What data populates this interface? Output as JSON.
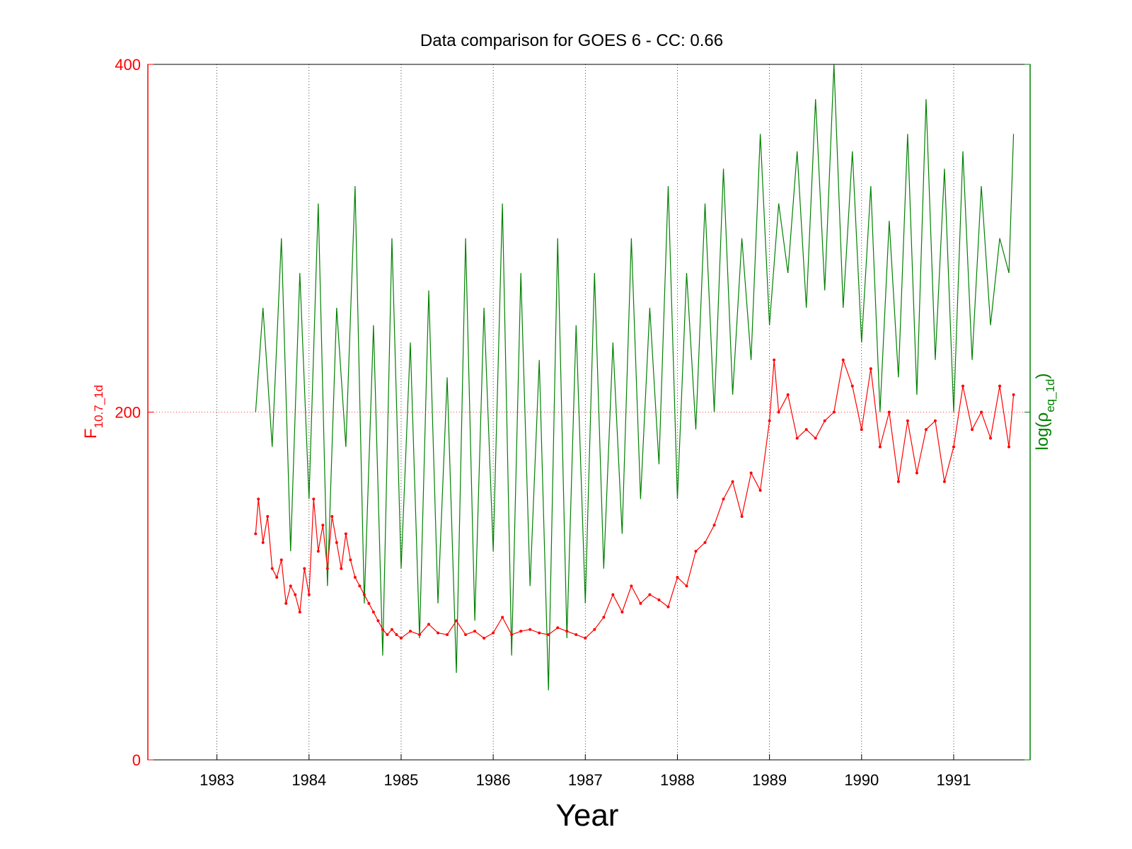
{
  "chart_data": {
    "type": "line",
    "title": "Data comparison for GOES 6 - CC: 0.66",
    "xlabel": "Year",
    "ylabel_left": {
      "base": "F",
      "subscript": "10.7_1d"
    },
    "ylabel_right": {
      "prefix": "log(ρ",
      "subscript": "eq_1d",
      "suffix": ")"
    },
    "xlim": [
      1982.25,
      1991.83
    ],
    "ylim": [
      0,
      400
    ],
    "x_ticks": [
      1983,
      1984,
      1985,
      1986,
      1987,
      1988,
      1989,
      1990,
      1991
    ],
    "x_tick_labels": [
      "1983",
      "1984",
      "1985",
      "1986",
      "1987",
      "1988",
      "1989",
      "1990",
      "1991"
    ],
    "y_ticks": [
      0,
      200,
      400
    ],
    "y_tick_labels": [
      "0",
      "200",
      "400"
    ],
    "grid": {
      "x": "dotted vertical lines at each year",
      "y": "dotted line at 200"
    },
    "colors": {
      "left_axis": "#ff0000",
      "right_axis": "#008000",
      "grid": "#000000"
    },
    "series": [
      {
        "color": "#ff0000",
        "style": "line with point markers",
        "x": [
          1983.42,
          1983.45,
          1983.5,
          1983.55,
          1983.6,
          1983.65,
          1983.7,
          1983.75,
          1983.8,
          1983.85,
          1983.9,
          1983.95,
          1984.0,
          1984.05,
          1984.1,
          1984.15,
          1984.2,
          1984.25,
          1984.3,
          1984.35,
          1984.4,
          1984.45,
          1984.5,
          1984.55,
          1984.6,
          1984.65,
          1984.7,
          1984.75,
          1984.8,
          1984.85,
          1984.9,
          1984.95,
          1985.0,
          1985.1,
          1985.2,
          1985.3,
          1985.4,
          1985.5,
          1985.6,
          1985.7,
          1985.8,
          1985.9,
          1986.0,
          1986.1,
          1986.2,
          1986.3,
          1986.4,
          1986.5,
          1986.6,
          1986.7,
          1986.8,
          1986.9,
          1987.0,
          1987.1,
          1987.2,
          1987.3,
          1987.4,
          1987.5,
          1987.6,
          1987.7,
          1987.8,
          1987.9,
          1988.0,
          1988.1,
          1988.2,
          1988.3,
          1988.4,
          1988.5,
          1988.6,
          1988.7,
          1988.8,
          1988.9,
          1989.0,
          1989.05,
          1989.1,
          1989.2,
          1989.3,
          1989.4,
          1989.5,
          1989.6,
          1989.7,
          1989.8,
          1989.9,
          1990.0,
          1990.1,
          1990.2,
          1990.3,
          1990.4,
          1990.5,
          1990.6,
          1990.7,
          1990.8,
          1990.9,
          1991.0,
          1991.1,
          1991.2,
          1991.3,
          1991.4,
          1991.5,
          1991.6,
          1991.65
        ],
        "y": [
          130,
          150,
          125,
          140,
          110,
          105,
          115,
          90,
          100,
          95,
          85,
          110,
          95,
          150,
          120,
          135,
          110,
          140,
          125,
          110,
          130,
          115,
          105,
          100,
          95,
          90,
          85,
          80,
          75,
          72,
          75,
          72,
          70,
          74,
          72,
          78,
          73,
          72,
          80,
          72,
          74,
          70,
          73,
          82,
          72,
          74,
          75,
          73,
          72,
          76,
          74,
          72,
          70,
          75,
          82,
          95,
          85,
          100,
          90,
          95,
          92,
          88,
          105,
          100,
          120,
          125,
          135,
          150,
          160,
          140,
          165,
          155,
          195,
          230,
          200,
          210,
          185,
          190,
          185,
          195,
          200,
          230,
          215,
          190,
          225,
          180,
          200,
          160,
          195,
          165,
          190,
          195,
          160,
          180,
          215,
          190,
          200,
          185,
          215,
          180,
          210
        ]
      },
      {
        "color": "#008000",
        "style": "line",
        "x": [
          1983.42,
          1983.5,
          1983.6,
          1983.7,
          1983.8,
          1983.9,
          1984.0,
          1984.1,
          1984.2,
          1984.3,
          1984.4,
          1984.5,
          1984.6,
          1984.7,
          1984.8,
          1984.9,
          1985.0,
          1985.1,
          1985.2,
          1985.3,
          1985.4,
          1985.5,
          1985.6,
          1985.7,
          1985.8,
          1985.9,
          1986.0,
          1986.1,
          1986.2,
          1986.3,
          1986.4,
          1986.5,
          1986.6,
          1986.7,
          1986.8,
          1986.9,
          1987.0,
          1987.1,
          1987.2,
          1987.3,
          1987.4,
          1987.5,
          1987.6,
          1987.7,
          1987.8,
          1987.9,
          1988.0,
          1988.1,
          1988.2,
          1988.3,
          1988.4,
          1988.5,
          1988.6,
          1988.7,
          1988.8,
          1988.9,
          1989.0,
          1989.1,
          1989.2,
          1989.3,
          1989.4,
          1989.5,
          1989.6,
          1989.7,
          1989.8,
          1989.9,
          1990.0,
          1990.1,
          1990.2,
          1990.3,
          1990.4,
          1990.5,
          1990.6,
          1990.7,
          1990.8,
          1990.9,
          1991.0,
          1991.1,
          1991.2,
          1991.3,
          1991.4,
          1991.5,
          1991.6,
          1991.65
        ],
        "y": [
          200,
          260,
          180,
          300,
          120,
          280,
          150,
          320,
          100,
          260,
          180,
          330,
          90,
          250,
          60,
          300,
          110,
          240,
          70,
          270,
          90,
          220,
          50,
          300,
          80,
          260,
          120,
          320,
          60,
          280,
          100,
          230,
          40,
          300,
          70,
          250,
          90,
          280,
          110,
          240,
          130,
          300,
          150,
          260,
          170,
          330,
          150,
          280,
          190,
          320,
          200,
          340,
          210,
          300,
          230,
          360,
          250,
          320,
          280,
          350,
          260,
          380,
          270,
          400,
          260,
          350,
          240,
          330,
          200,
          310,
          220,
          360,
          210,
          380,
          230,
          340,
          200,
          350,
          230,
          330,
          250,
          300,
          280,
          360
        ]
      }
    ]
  }
}
